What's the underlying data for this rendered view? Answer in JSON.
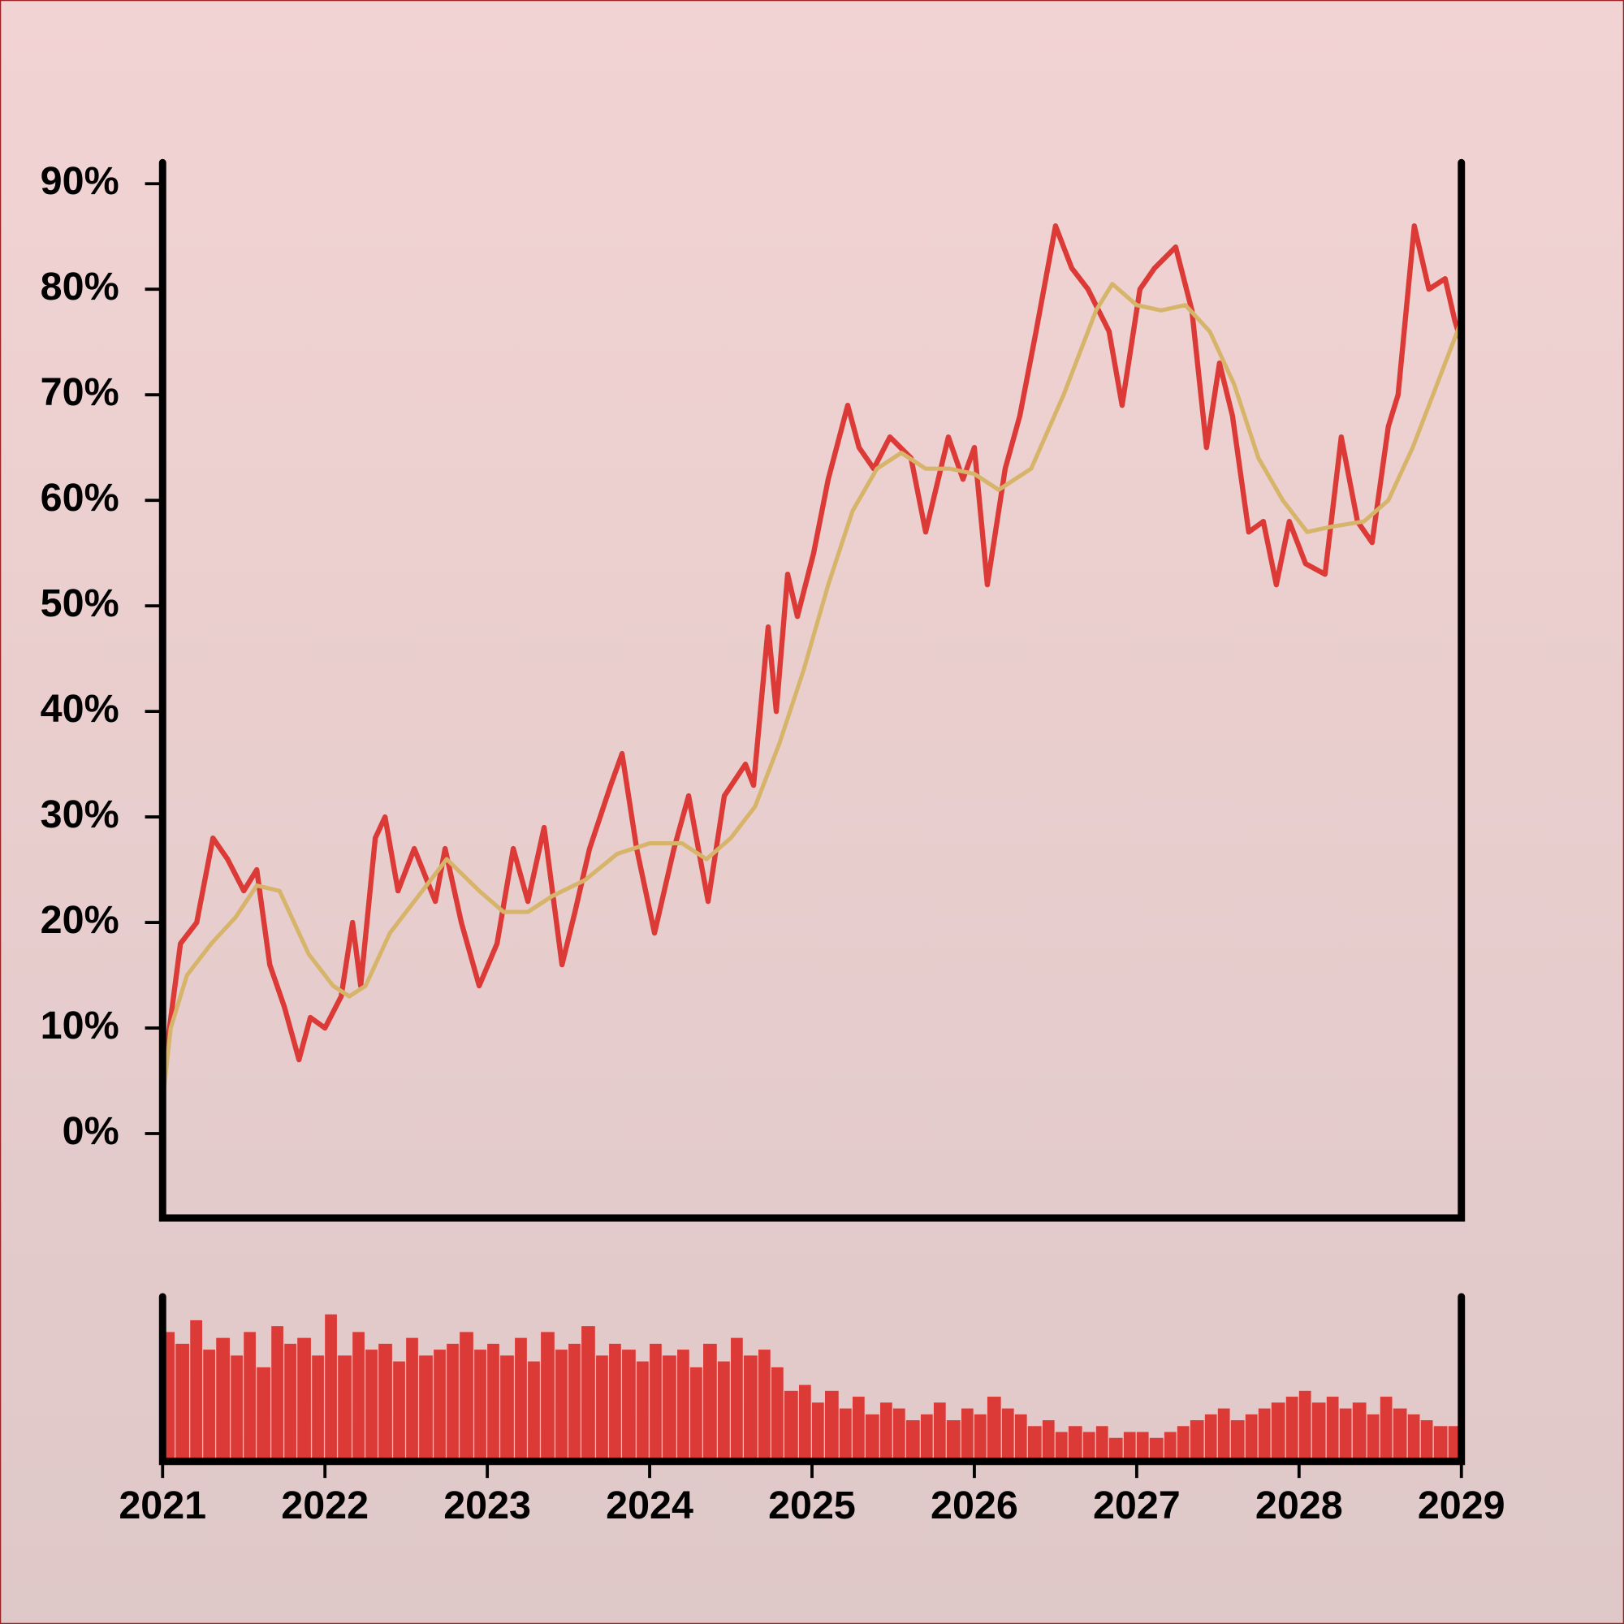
{
  "chart_data": [
    {
      "type": "line",
      "xlim": [
        2021,
        2029
      ],
      "ylim": [
        -8,
        92
      ],
      "yticks": [
        {
          "value": 0,
          "label": "0%"
        },
        {
          "value": 10,
          "label": "10%"
        },
        {
          "value": 20,
          "label": "20%"
        },
        {
          "value": 30,
          "label": "30%"
        },
        {
          "value": 40,
          "label": "40%"
        },
        {
          "value": 50,
          "label": "50%"
        },
        {
          "value": 60,
          "label": "60%"
        },
        {
          "value": 70,
          "label": "70%"
        },
        {
          "value": 80,
          "label": "80%"
        },
        {
          "value": 90,
          "label": "90%"
        }
      ],
      "series": [
        {
          "color": "#dc3a36",
          "x": [
            2021.0,
            2021.11,
            2021.21,
            2021.31,
            2021.4,
            2021.5,
            2021.58,
            2021.66,
            2021.75,
            2021.84,
            2021.91,
            2022.0,
            2022.1,
            2022.17,
            2022.22,
            2022.31,
            2022.37,
            2022.45,
            2022.55,
            2022.68,
            2022.74,
            2022.84,
            2022.95,
            2023.06,
            2023.16,
            2023.25,
            2023.35,
            2023.46,
            2023.54,
            2023.63,
            2023.76,
            2023.83,
            2023.92,
            2024.03,
            2024.15,
            2024.24,
            2024.36,
            2024.46,
            2024.59,
            2024.64,
            2024.73,
            2024.78,
            2024.85,
            2024.91,
            2025.01,
            2025.1,
            2025.22,
            2025.29,
            2025.38,
            2025.48,
            2025.61,
            2025.7,
            2025.84,
            2025.93,
            2026.0,
            2026.08,
            2026.19,
            2026.28,
            2026.38,
            2026.5,
            2026.6,
            2026.7,
            2026.83,
            2026.91,
            2027.02,
            2027.11,
            2027.24,
            2027.34,
            2027.43,
            2027.51,
            2027.59,
            2027.69,
            2027.78,
            2027.86,
            2027.94,
            2028.04,
            2028.16,
            2028.26,
            2028.36,
            2028.45,
            2028.55,
            2028.61,
            2028.71,
            2028.8,
            2028.9,
            2028.96,
            2029.0
          ],
          "values": [
            5,
            18,
            20,
            28,
            26,
            23,
            25,
            16,
            12,
            7,
            11,
            10,
            13,
            20,
            14,
            28,
            30,
            23,
            27,
            22,
            27,
            20,
            14,
            18,
            27,
            22,
            29,
            16,
            21,
            27,
            33,
            36,
            27,
            19,
            27,
            32,
            22,
            32,
            35,
            33,
            48,
            40,
            53,
            49,
            55,
            62,
            69,
            65,
            63,
            66,
            64,
            57,
            66,
            62,
            65,
            52,
            63,
            68,
            76,
            86,
            82,
            80,
            76,
            69,
            80,
            82,
            84,
            78,
            65,
            73,
            68,
            57,
            58,
            52,
            58,
            54,
            53,
            66,
            58,
            56,
            67,
            70,
            86,
            80,
            81,
            77,
            75
          ]
        },
        {
          "color": "#d6b46a",
          "x": [
            2021.0,
            2021.05,
            2021.15,
            2021.3,
            2021.45,
            2021.58,
            2021.72,
            2021.9,
            2022.05,
            2022.15,
            2022.25,
            2022.4,
            2022.55,
            2022.75,
            2022.95,
            2023.1,
            2023.25,
            2023.4,
            2023.6,
            2023.8,
            2024.0,
            2024.2,
            2024.35,
            2024.5,
            2024.65,
            2024.8,
            2024.95,
            2025.1,
            2025.25,
            2025.4,
            2025.55,
            2025.7,
            2025.85,
            2026.0,
            2026.15,
            2026.35,
            2026.55,
            2026.75,
            2026.85,
            2027.0,
            2027.15,
            2027.3,
            2027.45,
            2027.6,
            2027.75,
            2027.9,
            2028.05,
            2028.2,
            2028.4,
            2028.55,
            2028.7,
            2028.85,
            2029.0
          ],
          "values": [
            3,
            10,
            15,
            18,
            20.5,
            23.5,
            23,
            17,
            14,
            13,
            14,
            19,
            22,
            26,
            23,
            21,
            21,
            22.5,
            24,
            26.5,
            27.5,
            27.5,
            26,
            28,
            31,
            37,
            44,
            52,
            59,
            63,
            64.5,
            63,
            63,
            62.5,
            61,
            63,
            70,
            78,
            80.5,
            78.5,
            78,
            78.5,
            76,
            71,
            64,
            60,
            57,
            57.5,
            58,
            60,
            65,
            71,
            77
          ]
        }
      ]
    },
    {
      "type": "bar",
      "color": "#dc3a36",
      "xlim": [
        2021,
        2029
      ],
      "ylim": [
        0,
        140
      ],
      "xticks": [
        2021,
        2022,
        2023,
        2024,
        2025,
        2026,
        2027,
        2028,
        2029
      ],
      "x": [
        2021.0,
        2021.08,
        2021.17,
        2021.25,
        2021.33,
        2021.42,
        2021.5,
        2021.58,
        2021.67,
        2021.75,
        2021.83,
        2021.92,
        2022.0,
        2022.08,
        2022.17,
        2022.25,
        2022.33,
        2022.42,
        2022.5,
        2022.58,
        2022.67,
        2022.75,
        2022.83,
        2022.92,
        2023.0,
        2023.08,
        2023.17,
        2023.25,
        2023.33,
        2023.42,
        2023.5,
        2023.58,
        2023.67,
        2023.75,
        2023.83,
        2023.92,
        2024.0,
        2024.08,
        2024.17,
        2024.25,
        2024.33,
        2024.42,
        2024.5,
        2024.58,
        2024.67,
        2024.75,
        2024.83,
        2024.92,
        2025.0,
        2025.08,
        2025.17,
        2025.25,
        2025.33,
        2025.42,
        2025.5,
        2025.58,
        2025.67,
        2025.75,
        2025.83,
        2025.92,
        2026.0,
        2026.08,
        2026.17,
        2026.25,
        2026.33,
        2026.42,
        2026.5,
        2026.58,
        2026.67,
        2026.75,
        2026.83,
        2026.92,
        2027.0,
        2027.08,
        2027.17,
        2027.25,
        2027.33,
        2027.42,
        2027.5,
        2027.58,
        2027.67,
        2027.75,
        2027.83,
        2027.92,
        2028.0,
        2028.08,
        2028.17,
        2028.25,
        2028.33,
        2028.42,
        2028.5,
        2028.58,
        2028.67,
        2028.75,
        2028.83,
        2028.92
      ],
      "values": [
        110,
        100,
        120,
        95,
        105,
        90,
        110,
        80,
        115,
        100,
        105,
        90,
        125,
        90,
        110,
        95,
        100,
        85,
        105,
        90,
        95,
        100,
        110,
        95,
        100,
        90,
        105,
        85,
        110,
        95,
        100,
        115,
        90,
        100,
        95,
        85,
        100,
        90,
        95,
        80,
        100,
        85,
        105,
        90,
        95,
        80,
        60,
        65,
        50,
        60,
        45,
        55,
        40,
        50,
        45,
        35,
        40,
        50,
        35,
        45,
        40,
        55,
        45,
        40,
        30,
        35,
        25,
        30,
        25,
        30,
        20,
        25,
        25,
        20,
        25,
        30,
        35,
        40,
        45,
        35,
        40,
        45,
        50,
        55,
        60,
        50,
        55,
        45,
        50,
        40,
        55,
        45,
        40,
        35,
        30,
        30
      ]
    }
  ]
}
